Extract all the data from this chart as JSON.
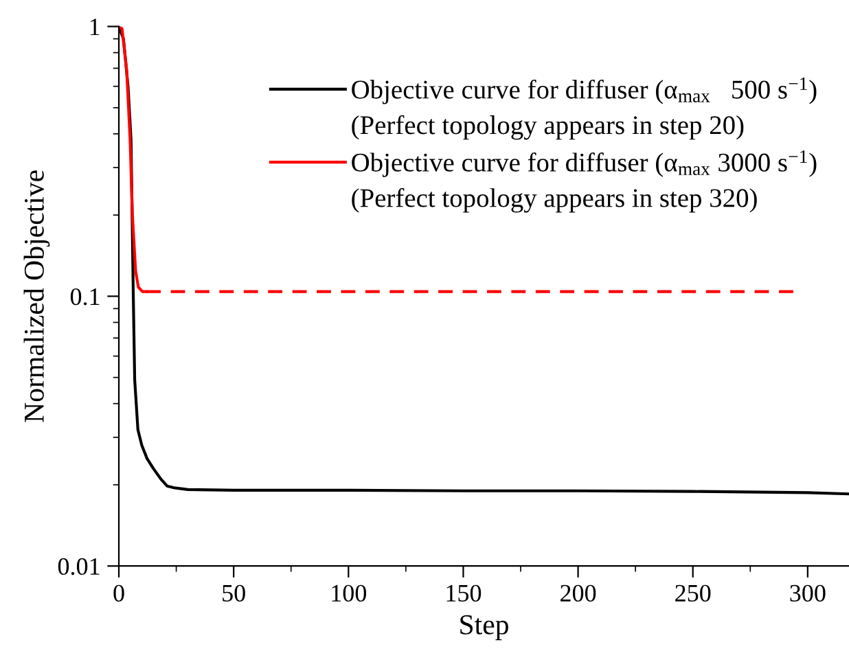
{
  "chart_data": {
    "type": "line",
    "xlabel": "Step",
    "ylabel": "Normalized Objective",
    "log": "y",
    "xlim": [
      0,
      318
    ],
    "xticks": [
      0,
      50,
      100,
      150,
      200,
      250,
      300
    ],
    "ylim": [
      0.01,
      1
    ],
    "yticks": [
      {
        "value": 0.01,
        "label": "0.01"
      },
      {
        "value": 0.1,
        "label": "0.1"
      },
      {
        "value": 1,
        "label": "1"
      }
    ],
    "grid": false,
    "legend": "top right",
    "marker": "none",
    "annotations": [
      "(Perfect topology appears in step 20)",
      "(Perfect topology appears in step 320)"
    ],
    "series": [
      {
        "name": "Objective curve for diffuser (α$_{max}$   500 s$^{−1}$)",
        "color": "#000000",
        "line_style": "solid",
        "x": [
          0,
          2,
          4,
          5.3,
          6.3,
          6.9,
          8.3,
          10,
          12.3,
          15,
          18.3,
          21,
          24,
          30,
          50,
          100,
          150,
          200,
          250,
          300,
          318
        ],
        "values": [
          1,
          0.9,
          0.6,
          0.38,
          0.099,
          0.049,
          0.032,
          0.028,
          0.025,
          0.023,
          0.021,
          0.0198,
          0.0195,
          0.0192,
          0.0191,
          0.0191,
          0.019,
          0.019,
          0.0189,
          0.0187,
          0.0185
        ]
      },
      {
        "name": "Objective curve for diffuser (α$_{max}$ 3000 s$^{−1}$)",
        "color": "#ff0000",
        "line_style": "solid",
        "x": [
          0,
          1.4,
          3.4,
          4.9,
          5.9,
          7.3,
          8.5,
          10.3,
          12
        ],
        "values": [
          1,
          0.98,
          0.69,
          0.38,
          0.2,
          0.124,
          0.108,
          0.104,
          0.104
        ]
      },
      {
        "color": "#ff0000",
        "line_style": "dashed",
        "x": [
          12,
          294
        ],
        "values": [
          0.104,
          0.104
        ]
      }
    ]
  }
}
